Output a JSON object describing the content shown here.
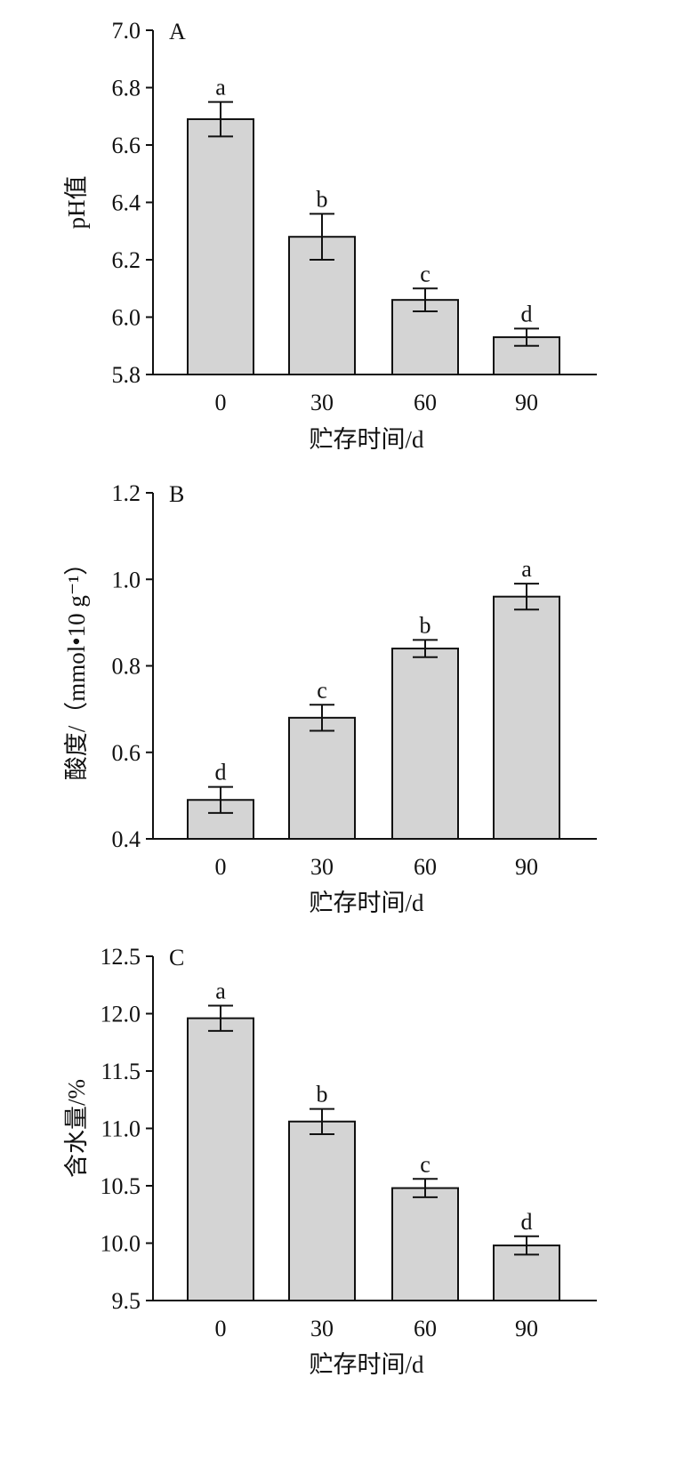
{
  "chart_data": [
    {
      "type": "bar",
      "panel": "A",
      "categories": [
        "0",
        "30",
        "60",
        "90"
      ],
      "values": [
        6.69,
        6.28,
        6.06,
        5.93
      ],
      "errors": [
        0.06,
        0.08,
        0.04,
        0.03
      ],
      "significance": [
        "a",
        "b",
        "c",
        "d"
      ],
      "xlabel": "贮存时间/d",
      "ylabel": "pH值",
      "ylim": [
        5.8,
        7.0
      ],
      "yticks": [
        5.8,
        6.0,
        6.2,
        6.4,
        6.6,
        6.8,
        7.0
      ],
      "ytick_labels": [
        "5.8",
        "6.0",
        "6.2",
        "6.4",
        "6.6",
        "6.8",
        "7.0"
      ]
    },
    {
      "type": "bar",
      "panel": "B",
      "categories": [
        "0",
        "30",
        "60",
        "90"
      ],
      "values": [
        0.49,
        0.68,
        0.84,
        0.96
      ],
      "errors": [
        0.03,
        0.03,
        0.02,
        0.03
      ],
      "significance": [
        "d",
        "c",
        "b",
        "a"
      ],
      "xlabel": "贮存时间/d",
      "ylabel": "酸度/（mmol•10 g⁻¹）",
      "ylim": [
        0.4,
        1.2
      ],
      "yticks": [
        0.4,
        0.6,
        0.8,
        1.0,
        1.2
      ],
      "ytick_labels": [
        "0.4",
        "0.6",
        "0.8",
        "1.0",
        "1.2"
      ]
    },
    {
      "type": "bar",
      "panel": "C",
      "categories": [
        "0",
        "30",
        "60",
        "90"
      ],
      "values": [
        11.96,
        11.06,
        10.48,
        9.98
      ],
      "errors": [
        0.11,
        0.11,
        0.08,
        0.08
      ],
      "significance": [
        "a",
        "b",
        "c",
        "d"
      ],
      "xlabel": "贮存时间/d",
      "ylabel": "含水量/%",
      "ylim": [
        9.5,
        12.5
      ],
      "yticks": [
        9.5,
        10.0,
        10.5,
        11.0,
        11.5,
        12.0,
        12.5
      ],
      "ytick_labels": [
        "9.5",
        "10.0",
        "10.5",
        "11.0",
        "11.5",
        "12.0",
        "12.5"
      ]
    }
  ],
  "colors": {
    "bar_fill": "#d4d4d4",
    "stroke": "#111111"
  }
}
